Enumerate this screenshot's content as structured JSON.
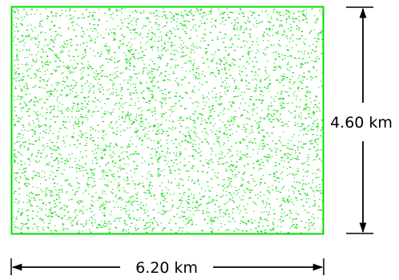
{
  "diagram": {
    "width_dimension": {
      "label": "6.20 km"
    },
    "height_dimension": {
      "label": "4.60 km"
    },
    "region": {
      "fill": "green-speckle",
      "border_color": "#00dd00",
      "dot_color": "#22dd22"
    },
    "dimension_line_color": "#000000"
  }
}
